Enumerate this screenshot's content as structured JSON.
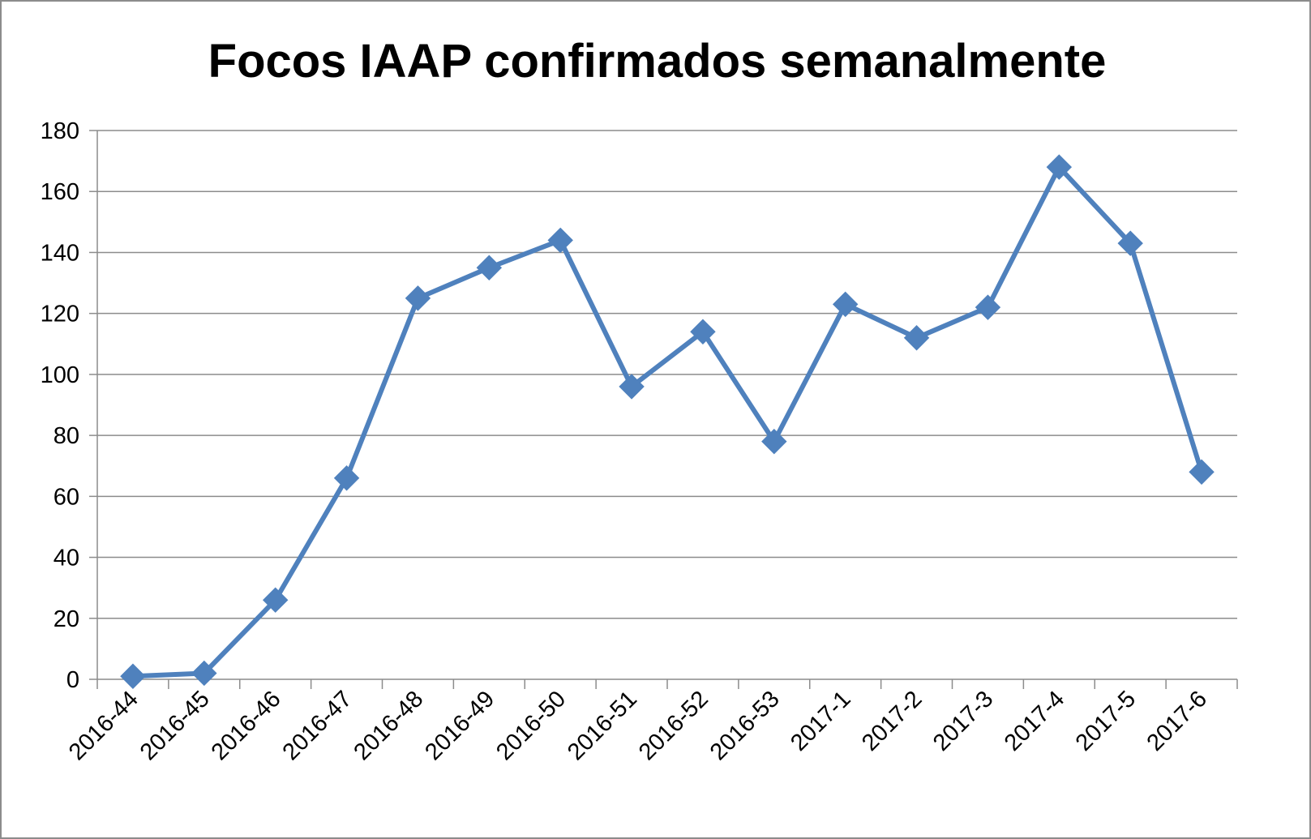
{
  "chart_data": {
    "type": "line",
    "title": "Focos IAAP confirmados semanalmente",
    "xlabel": "",
    "ylabel": "",
    "categories": [
      "2016-44",
      "2016-45",
      "2016-46",
      "2016-47",
      "2016-48",
      "2016-49",
      "2016-50",
      "2016-51",
      "2016-52",
      "2016-53",
      "2017-1",
      "2017-2",
      "2017-3",
      "2017-4",
      "2017-5",
      "2017-6"
    ],
    "series": [
      {
        "values": [
          1,
          2,
          26,
          66,
          125,
          135,
          144,
          96,
          114,
          78,
          123,
          112,
          122,
          168,
          143,
          68
        ]
      }
    ],
    "ylim": [
      0,
      180
    ],
    "yticks": [
      0,
      20,
      40,
      60,
      80,
      100,
      120,
      140,
      160,
      180
    ],
    "grid": true,
    "legend": "none",
    "line_color": "#4f81bd",
    "marker": "diamond"
  }
}
